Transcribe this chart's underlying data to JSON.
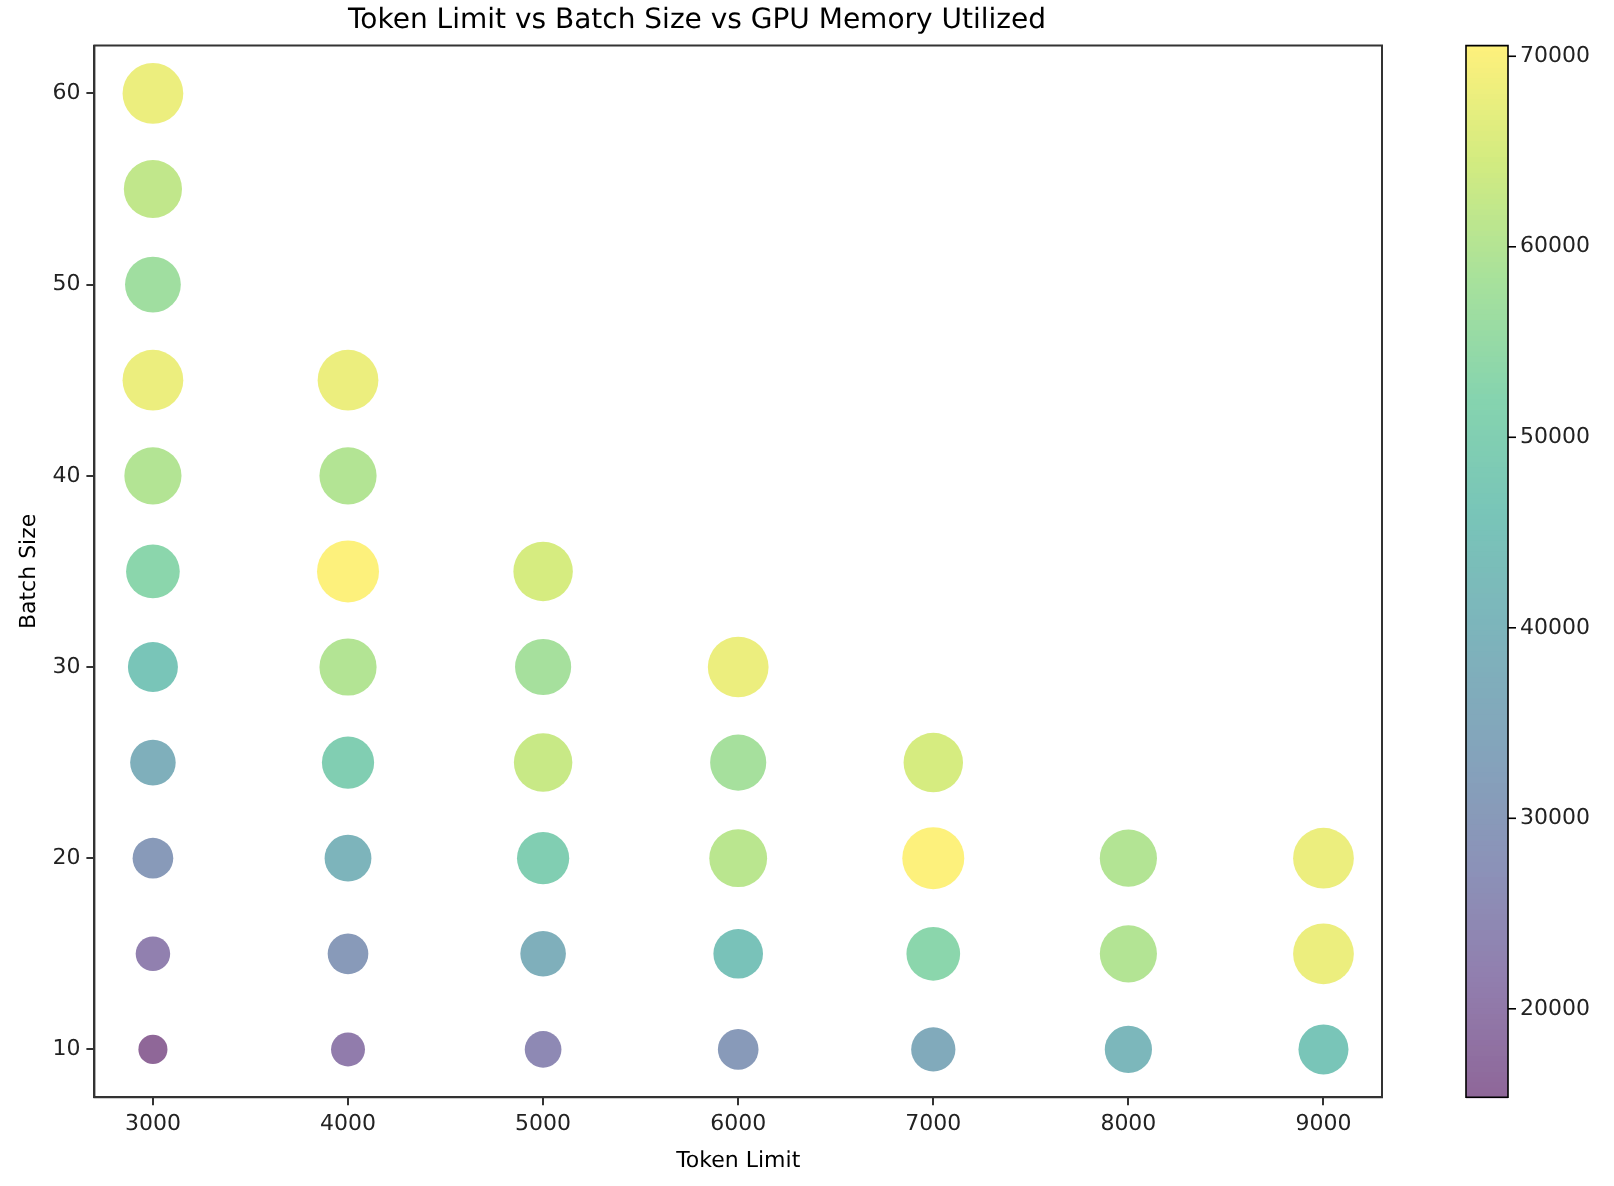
{
  "chart_data": {
    "type": "bubble",
    "title": "Token Limit vs Batch Size vs GPU Memory Utilized",
    "xlabel": "Token Limit",
    "ylabel": "Batch Size",
    "xlim": [
      2700,
      9300
    ],
    "xticks": [
      3000,
      4000,
      5000,
      6000,
      7000,
      8000,
      9000
    ],
    "ylim": [
      7.5,
      62.5
    ],
    "yticks": [
      10,
      20,
      30,
      40,
      50,
      60
    ],
    "clim": [
      15360,
      70560
    ],
    "cticks": [
      20000,
      30000,
      40000,
      50000,
      60000,
      70000
    ],
    "grid": false,
    "legend": false,
    "marker": "circle",
    "series": [
      {
        "x": [
          3000,
          3000,
          3000,
          3000,
          3000,
          3000,
          3000,
          3000,
          3000,
          3000,
          3000,
          4000,
          4000,
          4000,
          4000,
          4000,
          4000,
          4000,
          4000,
          5000,
          5000,
          5000,
          5000,
          5000,
          5000,
          6000,
          6000,
          6000,
          6000,
          6000,
          7000,
          7000,
          7000,
          7000,
          8000,
          8000,
          8000,
          9000,
          9000,
          9000
        ],
        "values": [
          10,
          15,
          20,
          25,
          30,
          35,
          40,
          45,
          50,
          55,
          60,
          10,
          15,
          20,
          25,
          30,
          35,
          40,
          45,
          10,
          15,
          20,
          25,
          30,
          35,
          10,
          15,
          20,
          25,
          30,
          10,
          15,
          20,
          25,
          10,
          15,
          20,
          10,
          15,
          20
        ],
        "cvalues": [
          15400,
          22000,
          30000,
          38000,
          46000,
          53000,
          60000,
          68000,
          57000,
          62000,
          68000,
          21000,
          30000,
          40000,
          50000,
          60000,
          70500,
          60000,
          68000,
          25000,
          38000,
          50000,
          63000,
          58000,
          65000,
          30000,
          45000,
          61000,
          58000,
          68000,
          36000,
          53000,
          70500,
          65000,
          41000,
          60000,
          60000,
          46000,
          68000,
          68000
        ],
        "sizes": [
          0.22,
          0.31,
          0.43,
          0.54,
          0.65,
          0.75,
          0.85,
          0.96,
          0.81,
          0.88,
          0.96,
          0.3,
          0.43,
          0.57,
          0.71,
          0.85,
          1,
          0.85,
          0.96,
          0.35,
          0.54,
          0.71,
          0.89,
          0.82,
          0.92,
          0.43,
          0.64,
          0.87,
          0.82,
          0.96,
          0.51,
          0.75,
          1,
          0.92,
          0.58,
          0.85,
          0.85,
          0.65,
          0.96,
          0.96
        ]
      }
    ]
  }
}
